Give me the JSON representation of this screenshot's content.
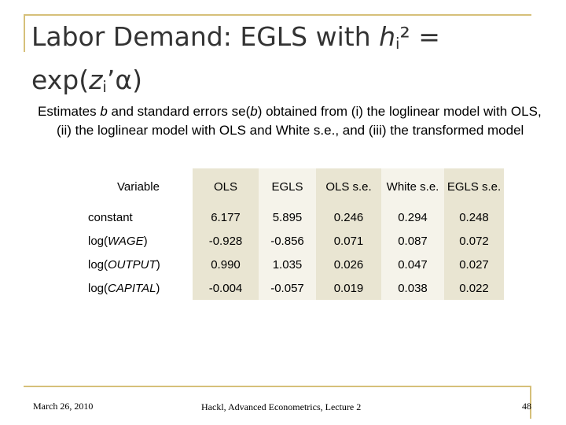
{
  "slide": {
    "title_prefix": "Labor Demand: EGLS with ",
    "title_var": "h",
    "title_sub": "i",
    "title_mid": "² = exp(",
    "title_z": "z",
    "title_sub2": "i",
    "title_suffix": "’α)",
    "subtitle_1": "Estimates ",
    "subtitle_b": "b",
    "subtitle_2": " and standard errors se(",
    "subtitle_b2": "b",
    "subtitle_3": ") obtained from (i) the loglinear model with OLS, (ii) the loglinear model with OLS and White s.e., and (iii) the transformed model"
  },
  "table": {
    "headers": [
      "Variable",
      "OLS",
      "EGLS",
      "OLS s.e.",
      "White s.e.",
      "EGLS s.e."
    ],
    "rows": [
      {
        "pre": "constant",
        "var": "",
        "post": "",
        "values": [
          "6.177",
          "5.895",
          "0.246",
          "0.294",
          "0.248"
        ]
      },
      {
        "pre": "log(",
        "var": "WAGE",
        "post": ")",
        "values": [
          "-0.928",
          "-0.856",
          "0.071",
          "0.087",
          "0.072"
        ]
      },
      {
        "pre": "log(",
        "var": "OUTPUT",
        "post": ")",
        "values": [
          "0.990",
          "1.035",
          "0.026",
          "0.047",
          "0.027"
        ]
      },
      {
        "pre": "log(",
        "var": "CAPITAL",
        "post": ")",
        "values": [
          "-0.004",
          "-0.057",
          "0.019",
          "0.038",
          "0.022"
        ]
      }
    ]
  },
  "footer": {
    "date": "March 26, 2010",
    "center": "Hackl, Advanced Econometrics, Lecture 2",
    "page": "48"
  },
  "colors": {
    "accent": "#d6c07a",
    "cell_dark": "#e9e5d2",
    "cell_light": "#f5f3ea",
    "title": "#333333"
  }
}
